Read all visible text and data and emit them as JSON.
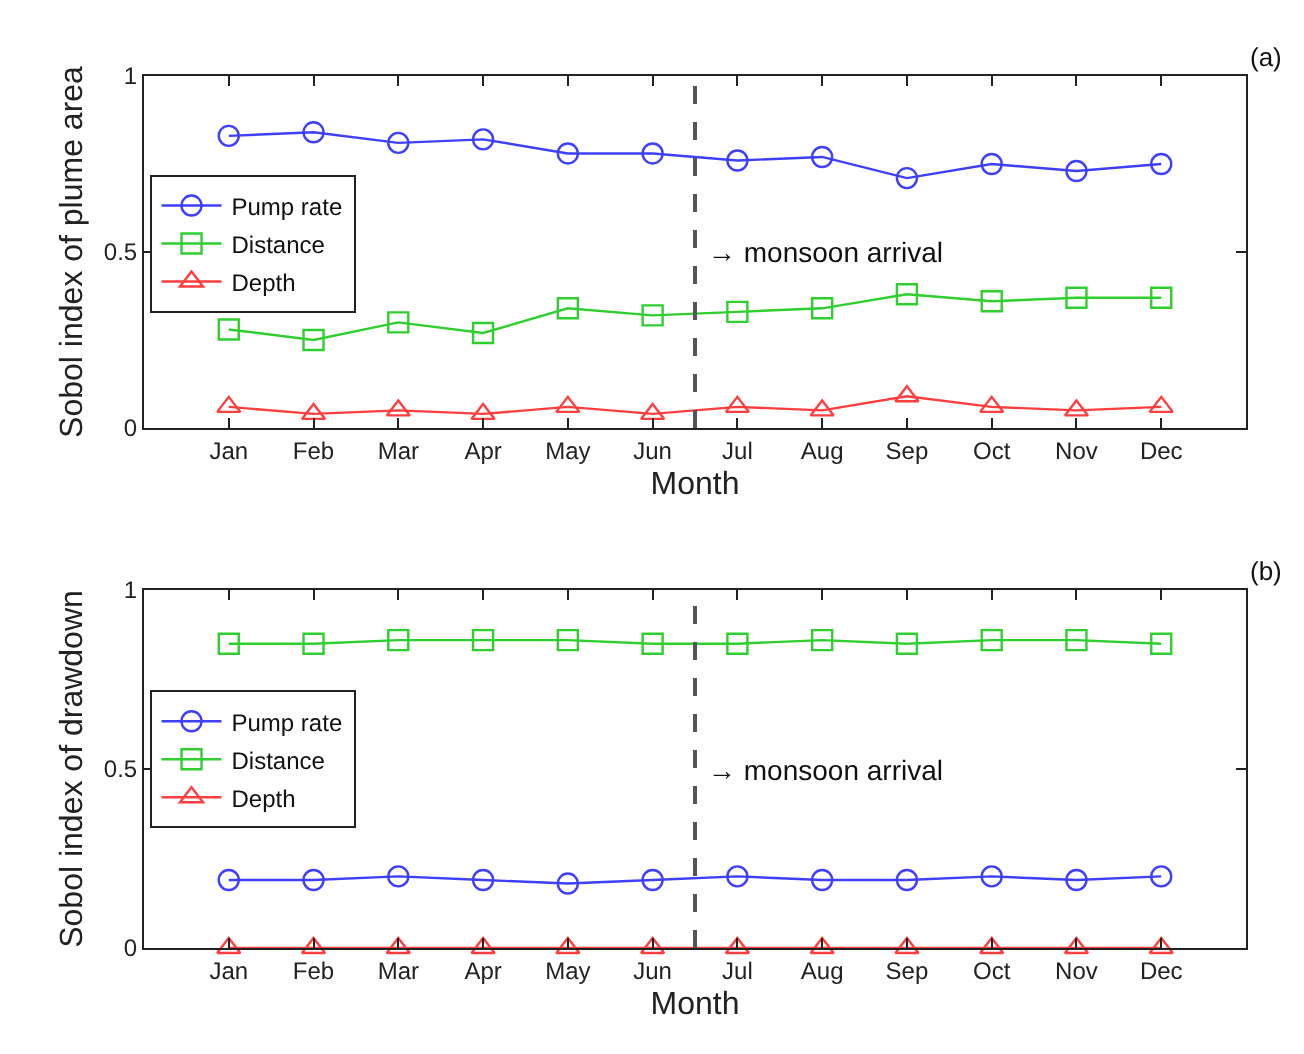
{
  "chart_data": [
    {
      "type": "line",
      "ylabel": "Sobol index of plume area",
      "xlabel": "Month",
      "annotations": [
        "(a)",
        "→ monsoon arrival"
      ],
      "categories": [
        "Jan",
        "Feb",
        "Mar",
        "Apr",
        "May",
        "Jun",
        "Jul",
        "Aug",
        "Sep",
        "Oct",
        "Nov",
        "Dec"
      ],
      "series": [
        {
          "name": "Pump rate",
          "color": "#3f3fff",
          "marker": "circle",
          "values": [
            0.83,
            0.84,
            0.81,
            0.82,
            0.78,
            0.78,
            0.76,
            0.77,
            0.71,
            0.75,
            0.73,
            0.75
          ]
        },
        {
          "name": "Distance",
          "color": "#2fcf2f",
          "marker": "square",
          "values": [
            0.28,
            0.25,
            0.3,
            0.27,
            0.34,
            0.32,
            0.33,
            0.34,
            0.38,
            0.36,
            0.37,
            0.37
          ]
        },
        {
          "name": "Depth",
          "color": "#ff3f3f",
          "marker": "triangle",
          "values": [
            0.06,
            0.04,
            0.05,
            0.04,
            0.06,
            0.04,
            0.06,
            0.05,
            0.09,
            0.06,
            0.05,
            0.06
          ]
        }
      ],
      "ylim": [
        0,
        1
      ],
      "yticks": [
        0,
        0.5,
        1
      ],
      "legend": "left"
    },
    {
      "type": "line",
      "ylabel": "Sobol index of drawdown",
      "xlabel": "Month",
      "annotations": [
        "(b)",
        "→ monsoon arrival"
      ],
      "categories": [
        "Jan",
        "Feb",
        "Mar",
        "Apr",
        "May",
        "Jun",
        "Jul",
        "Aug",
        "Sep",
        "Oct",
        "Nov",
        "Dec"
      ],
      "series": [
        {
          "name": "Pump rate",
          "color": "#3f3fff",
          "marker": "circle",
          "values": [
            0.19,
            0.19,
            0.2,
            0.19,
            0.18,
            0.19,
            0.2,
            0.19,
            0.19,
            0.2,
            0.19,
            0.2
          ]
        },
        {
          "name": "Distance",
          "color": "#2fcf2f",
          "marker": "square",
          "values": [
            0.85,
            0.85,
            0.86,
            0.86,
            0.86,
            0.85,
            0.85,
            0.86,
            0.85,
            0.86,
            0.86,
            0.85
          ]
        },
        {
          "name": "Depth",
          "color": "#ff3f3f",
          "marker": "triangle",
          "values": [
            0,
            0,
            0,
            0,
            0,
            0,
            0,
            0,
            0,
            0,
            0,
            0
          ]
        }
      ],
      "ylim": [
        0,
        1
      ],
      "yticks": [
        0,
        0.5,
        1
      ],
      "legend": "left"
    }
  ]
}
